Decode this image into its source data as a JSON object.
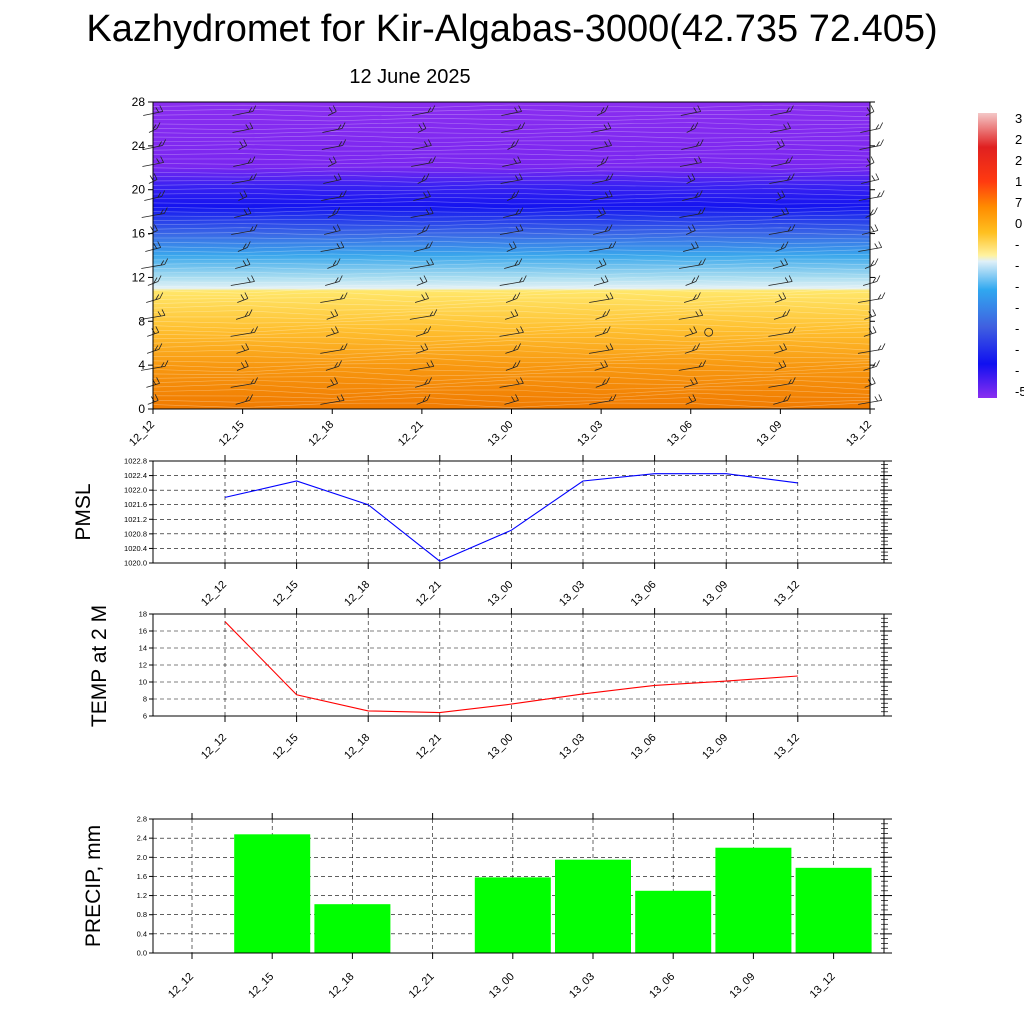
{
  "title": "Kazhydromet for Kir-Algabas-3000(42.735 72.405)",
  "subtitle": "12 June 2025",
  "chart_data": [
    {
      "type": "heatmap",
      "name": "cross-section",
      "x": [
        "12_12",
        "12_15",
        "12_18",
        "12_21",
        "13_00",
        "13_03",
        "13_06",
        "13_09",
        "13_12"
      ],
      "yticks": [
        0,
        4,
        8,
        12,
        16,
        20,
        24,
        28
      ],
      "ylim": [
        0,
        28
      ],
      "colorbar_labels": [
        "3",
        "2",
        "2",
        "1",
        "7",
        "0",
        "-",
        "-",
        "-",
        "-",
        "-",
        "-",
        "-",
        "-5"
      ],
      "layers_bottom_to_top": [
        {
          "from": 0,
          "to": 11,
          "band": "warm (orange to yellow)"
        },
        {
          "from": 11,
          "to": 16,
          "band": "cold (light blue to blue)"
        },
        {
          "from": 16,
          "to": 21,
          "band": "very cold (dark blue)"
        },
        {
          "from": 21,
          "to": 28,
          "band": "coldest (purple)"
        }
      ],
      "wind_barbs": true
    },
    {
      "type": "line",
      "ylabel": "PMSL",
      "categories": [
        "12_12",
        "12_15",
        "12_18",
        "12_21",
        "13_00",
        "13_03",
        "13_06",
        "13_09",
        "13_12"
      ],
      "yticks": [
        "1020.0",
        "1020.4",
        "1020.8",
        "1021.2",
        "1021.6",
        "1022.0",
        "1022.4",
        "1022.8"
      ],
      "ylim": [
        1020.0,
        1022.8
      ],
      "values": [
        1021.8,
        1022.25,
        1021.6,
        1020.05,
        1020.9,
        1022.25,
        1022.45,
        1022.45,
        1022.2
      ],
      "color": "#0000ff",
      "grid": true
    },
    {
      "type": "line",
      "ylabel": "TEMP at 2 M",
      "categories": [
        "12_12",
        "12_15",
        "12_18",
        "12_21",
        "13_00",
        "13_03",
        "13_06",
        "13_09",
        "13_12"
      ],
      "yticks": [
        "6",
        "8",
        "10",
        "12",
        "14",
        "16",
        "18"
      ],
      "ylim": [
        6,
        18
      ],
      "values": [
        17.1,
        8.5,
        6.6,
        6.4,
        7.4,
        8.6,
        9.6,
        10.1,
        10.7
      ],
      "color": "#ff0000",
      "grid": true
    },
    {
      "type": "bar",
      "ylabel": "PRECIP, mm",
      "categories": [
        "12_12",
        "12_15",
        "12_18",
        "12_21",
        "13_00",
        "13_03",
        "13_06",
        "13_09",
        "13_12"
      ],
      "yticks": [
        "0.0",
        "0.4",
        "0.8",
        "1.2",
        "1.6",
        "2.0",
        "2.4",
        "2.8"
      ],
      "ylim": [
        0,
        2.8
      ],
      "values": [
        0,
        2.48,
        1.02,
        0,
        1.58,
        1.95,
        1.3,
        2.2,
        1.78
      ],
      "color": "#00ff00",
      "grid": true
    }
  ]
}
